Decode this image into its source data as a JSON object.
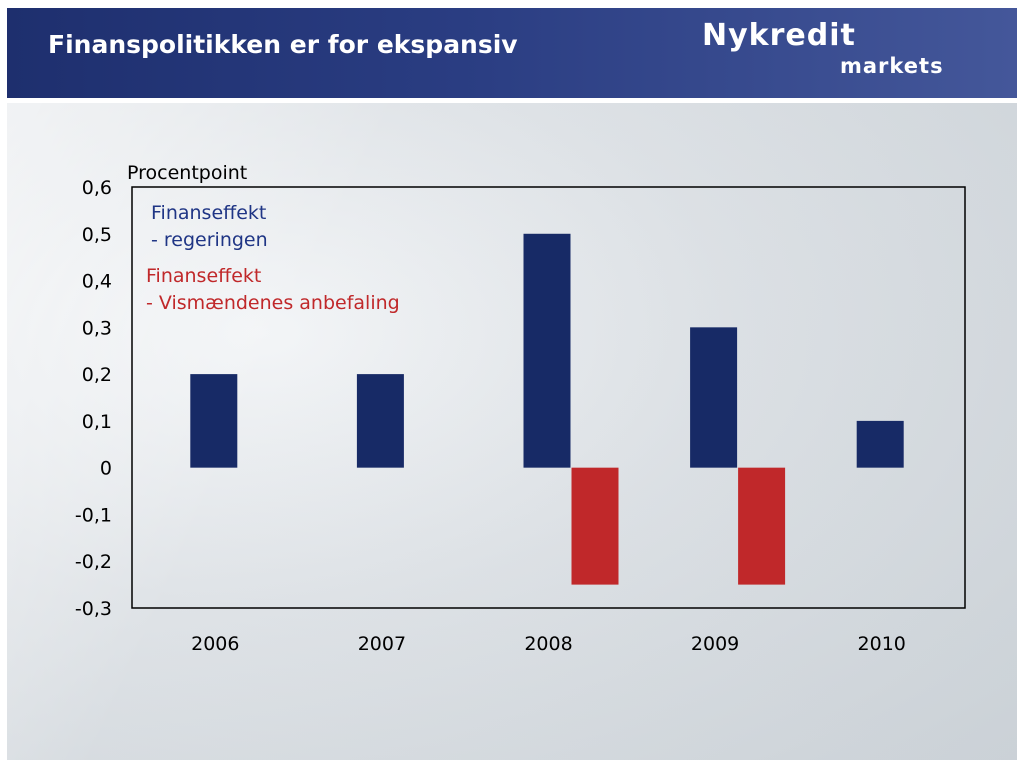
{
  "header": {
    "title": "Finanspolitikken er for ekspansiv",
    "logo_main": "Nykredit",
    "logo_sub": "markets"
  },
  "colors": {
    "header_bg": "#233576",
    "series_gov": "#172a66",
    "series_vis": "#c0282a"
  },
  "chart_data": {
    "type": "bar",
    "ylabel": "Procentpoint",
    "categories": [
      "2006",
      "2007",
      "2008",
      "2009",
      "2010"
    ],
    "series": [
      {
        "name_lines": [
          "Finanseffekt",
          "- regeringen"
        ],
        "values": [
          0.2,
          0.2,
          0.5,
          0.3,
          0.1
        ]
      },
      {
        "name_lines": [
          "Finanseffekt",
          "- Vismændenes anbefaling"
        ],
        "values": [
          null,
          null,
          -0.25,
          -0.25,
          null
        ]
      }
    ],
    "ylim": [
      -0.3,
      0.6
    ],
    "y_ticks": [
      "0,6",
      "0,5",
      "0,4",
      "0,3",
      "0,2",
      "0,1",
      "0",
      "-0,1",
      "-0,2",
      "-0,3"
    ],
    "legend_position": "top-left inside plot",
    "grid": false
  }
}
